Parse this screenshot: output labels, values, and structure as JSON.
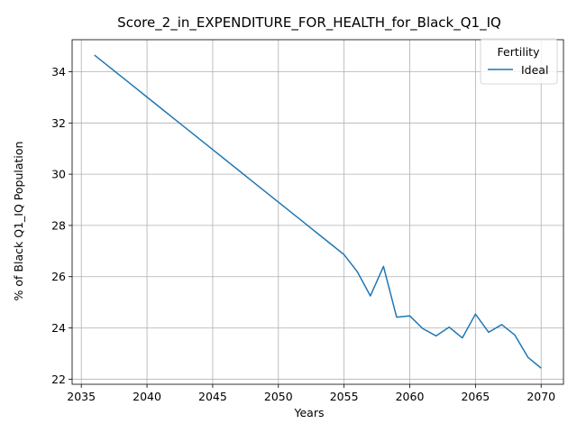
{
  "chart_data": {
    "type": "line",
    "title": "Score_2_in_EXPENDITURE_FOR_HEALTH_for_Black_Q1_IQ",
    "xlabel": "Years",
    "ylabel": "% of Black Q1_IQ Population",
    "xlim": [
      2034.3,
      2071.7
    ],
    "ylim": [
      21.8,
      35.25
    ],
    "xticks": [
      2035,
      2040,
      2045,
      2050,
      2055,
      2060,
      2065,
      2070
    ],
    "yticks": [
      22,
      24,
      26,
      28,
      30,
      32,
      34
    ],
    "grid": true,
    "legend": {
      "title": "Fertility",
      "placement": "top-right"
    },
    "series": [
      {
        "name": "Ideal",
        "color": "#1f77b4",
        "x": [
          2036,
          2037,
          2038,
          2039,
          2040,
          2041,
          2042,
          2043,
          2044,
          2045,
          2046,
          2047,
          2048,
          2049,
          2050,
          2051,
          2052,
          2053,
          2054,
          2055,
          2056,
          2057,
          2058,
          2059,
          2060,
          2061,
          2062,
          2063,
          2064,
          2065,
          2066,
          2067,
          2068,
          2069,
          2070
        ],
        "y": [
          34.65,
          34.24,
          33.83,
          33.42,
          33.01,
          32.6,
          32.19,
          31.78,
          31.37,
          30.96,
          30.55,
          30.14,
          29.73,
          29.32,
          28.91,
          28.5,
          28.09,
          27.68,
          27.27,
          26.86,
          26.2,
          25.25,
          26.4,
          24.42,
          24.47,
          23.97,
          23.69,
          24.03,
          23.61,
          24.54,
          23.83,
          24.13,
          23.72,
          22.85,
          22.43
        ]
      }
    ]
  }
}
